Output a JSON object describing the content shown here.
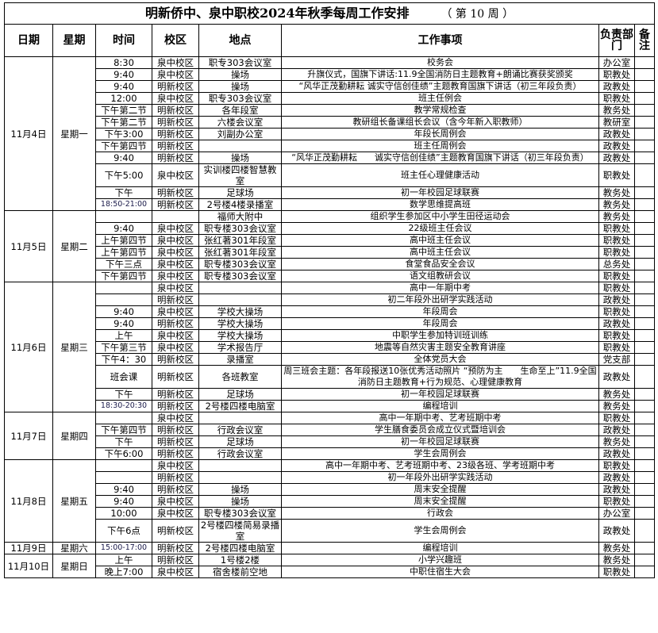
{
  "title": "明新侨中、泉中职校2024年秋季每周工作安排",
  "week_label": "（ 第 10 周 ）",
  "headers": [
    "日期",
    "星期",
    "时间",
    "校区",
    "地点",
    "工作事项",
    "负责部门",
    "备注"
  ],
  "days": [
    {
      "date": "11月4日",
      "weekday": "星期一",
      "items": [
        {
          "time": "8:30",
          "campus": "泉中校区",
          "place": "职专303会议室",
          "task": "校务会",
          "dept": "办公室"
        },
        {
          "time": "9:40",
          "campus": "泉中校区",
          "place": "操场",
          "task": "升旗仪式，国旗下讲话:11.9全国消防日主题教育+朗诵比赛获奖颁奖",
          "dept": "职教处"
        },
        {
          "time": "9:40",
          "campus": "明新校区",
          "place": "操场",
          "task": "“风华正茂勤耕耘 诚实守信创佳绩”主题教育国旗下讲话（初三年段负责）",
          "dept": "政教处"
        },
        {
          "time": "12:00",
          "campus": "泉中校区",
          "place": "职专303会议室",
          "task": "班主任例会",
          "dept": "职教处"
        },
        {
          "time": "下午第二节",
          "campus": "明新校区",
          "place": "各年段室",
          "task": "教学常规检查",
          "dept": "教务处"
        },
        {
          "time": "下午第二节",
          "campus": "明新校区",
          "place": "六楼会议室",
          "task": "教研组长备课组长会议（含今年新入职教师）",
          "dept": "教研室"
        },
        {
          "time": "下午3:00",
          "campus": "明新校区",
          "place": "刘副办公室",
          "task": "年段长周例会",
          "dept": "政教处"
        },
        {
          "time": "下午第四节",
          "campus": "明新校区",
          "place": "",
          "task": "班主任周例会",
          "dept": "政教处"
        },
        {
          "time": "9:40",
          "campus": "明新校区",
          "place": "操场",
          "task": "“风华正茂勤耕耘　　诚实守信创佳绩”主题教育国旗下讲话（初三年段负责）",
          "dept": "政教处"
        },
        {
          "time": "下午5:00",
          "campus": "泉中校区",
          "place": "实训楼四楼智慧教室",
          "task": "班主任心理健康活动",
          "dept": "职教处"
        },
        {
          "time": "下午",
          "campus": "明新校区",
          "place": "足球场",
          "task": "初一年校园足球联赛",
          "dept": "教务处"
        },
        {
          "time": "18:50-21:00",
          "campus": "明新校区",
          "place": "2号楼4楼录播室",
          "task": "数学思维提高班",
          "dept": "教务处"
        }
      ]
    },
    {
      "date": "11月5日",
      "weekday": "星期二",
      "items": [
        {
          "time": "",
          "campus": "",
          "place": "福师大附中",
          "task": "组织学生参加区中小学生田径运动会",
          "dept": "教务处"
        },
        {
          "time": "9:40",
          "campus": "泉中校区",
          "place": "职专楼303会议室",
          "task": "22级班主任会议",
          "dept": "职教处"
        },
        {
          "time": "上午第四节",
          "campus": "泉中校区",
          "place": "张红著301年段室",
          "task": "高中班主任会议",
          "dept": "职教处"
        },
        {
          "time": "上午第四节",
          "campus": "泉中校区",
          "place": "张红著301年段室",
          "task": "高中班主任会议",
          "dept": "职教处"
        },
        {
          "time": "下午三点",
          "campus": "泉中校区",
          "place": "职专楼303会议室",
          "task": "食堂食品安全会议",
          "dept": "总务处"
        },
        {
          "time": "下午第四节",
          "campus": "泉中校区",
          "place": "职专楼303会议室",
          "task": "语文组教研会议",
          "dept": "职教处"
        }
      ]
    },
    {
      "date": "11月6日",
      "weekday": "星期三",
      "items": [
        {
          "time": "",
          "campus": "泉中校区",
          "place": "",
          "task": "高中一年期中考",
          "dept": "职教处"
        },
        {
          "time": "",
          "campus": "明新校区",
          "place": "",
          "task": "初二年段外出研学实践活动",
          "dept": "政教处"
        },
        {
          "time": "9:40",
          "campus": "泉中校区",
          "place": "学校大操场",
          "task": "年段周会",
          "dept": "职教处"
        },
        {
          "time": "9:40",
          "campus": "明新校区",
          "place": "学校大操场",
          "task": "年段周会",
          "dept": "政教处"
        },
        {
          "time": "上午",
          "campus": "泉中校区",
          "place": "学校大操场",
          "task": "中职学生参加特训班训练",
          "dept": "职教处"
        },
        {
          "time": "下午第三节",
          "campus": "泉中校区",
          "place": "学术报告厅",
          "task": "地震等自然灾害主题安全教育讲座",
          "dept": "职教处"
        },
        {
          "time": "下午4：30",
          "campus": "明新校区",
          "place": "录播室",
          "task": "全体党员大会",
          "dept": "党支部"
        },
        {
          "time": "班会课",
          "campus": "明新校区",
          "place": "各班教室",
          "task": "周三班会主题：各年段报送10张优秀活动照片 “预防为主　　生命至上”11.9全国消防日主题教育+行为规范、心理健康教育",
          "dept": "政教处"
        },
        {
          "time": "下午",
          "campus": "明新校区",
          "place": "足球场",
          "task": "初一年校园足球联赛",
          "dept": "教务处"
        },
        {
          "time": "18:30-20:30",
          "campus": "明新校区",
          "place": "2号楼四楼电脑室",
          "task": "编程培训",
          "dept": "教务处"
        }
      ]
    },
    {
      "date": "11月7日",
      "weekday": "星期四",
      "items": [
        {
          "time": "",
          "campus": "泉中校区",
          "place": "",
          "task": "高中一年期中考、艺考班期中考",
          "dept": "职教处"
        },
        {
          "time": "下午第四节",
          "campus": "明新校区",
          "place": "行政会议室",
          "task": "学生膳食委员会成立仪式暨培训会",
          "dept": "政教处"
        },
        {
          "time": "下午",
          "campus": "明新校区",
          "place": "足球场",
          "task": "初一年校园足球联赛",
          "dept": "教务处"
        },
        {
          "time": "下午6:00",
          "campus": "明新校区",
          "place": "行政会议室",
          "task": "学生会周例会",
          "dept": "政教处"
        }
      ]
    },
    {
      "date": "11月8日",
      "weekday": "星期五",
      "items": [
        {
          "time": "",
          "campus": "泉中校区",
          "place": "",
          "task": "高中一年期中考、艺考班期中考、23级各班、学考班期中考",
          "dept": "职教处"
        },
        {
          "time": "",
          "campus": "明新校区",
          "place": "",
          "task": "初一年段外出研学实践活动",
          "dept": "政教处"
        },
        {
          "time": "9:40",
          "campus": "明新校区",
          "place": "操场",
          "task": "周末安全提醒",
          "dept": "政教处"
        },
        {
          "time": "9:40",
          "campus": "泉中校区",
          "place": "操场",
          "task": "周末安全提醒",
          "dept": "职教处"
        },
        {
          "time": "10:00",
          "campus": "泉中校区",
          "place": "职专楼303会议室",
          "task": "行政会",
          "dept": "办公室"
        },
        {
          "time": "下午6点",
          "campus": "明新校区",
          "place": "2号楼四楼简易录播室",
          "task": "学生会周例会",
          "dept": "政教处"
        }
      ]
    },
    {
      "date": "11月9日",
      "weekday": "星期六",
      "items": [
        {
          "time": "15:00-17:00",
          "campus": "明新校区",
          "place": "2号楼四楼电脑室",
          "task": "编程培训",
          "dept": "教务处"
        }
      ]
    },
    {
      "date": "11月10日",
      "weekday": "星期日",
      "items": [
        {
          "time": "上午",
          "campus": "明新校区",
          "place": "1号楼2楼",
          "task": "小学兴趣班",
          "dept": "教务处"
        },
        {
          "time": "晚上7:00",
          "campus": "泉中校区",
          "place": "宿舍楼前空地",
          "task": "中职住宿生大会",
          "dept": "职教处"
        }
      ]
    }
  ]
}
